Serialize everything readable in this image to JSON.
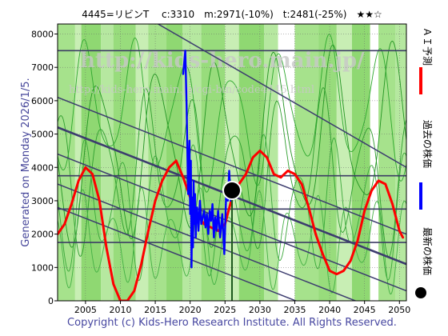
{
  "header": {
    "title": "4445=リビンT　 c:3310　m:2971(-10%)　t:2481(-25%)　★★☆"
  },
  "side": {
    "generated": "Generated on Monday 2026/1/5."
  },
  "footer": {
    "copyright": "Copyright (c) Kids-Hero Research Institute. All Rights Reserved."
  },
  "watermark": {
    "url1": "http://kids-hero.main.jp/",
    "url2": "http://kids-hero.main.jp/cgi-bin/code4445.html"
  },
  "legend": {
    "items": [
      {
        "label": "ＡＩ予測",
        "color": "#ff0000",
        "shape": "line"
      },
      {
        "label": "過去の株価",
        "color": "#0000ff",
        "shape": "line"
      },
      {
        "label": "最新の株価",
        "color": "#000000",
        "shape": "circle"
      }
    ]
  },
  "chart_data": {
    "type": "line",
    "title": "4445=リビンT　 c:3310　m:2971(-10%)　t:2481(-25%)　★★☆",
    "xlim": [
      2001,
      2051
    ],
    "ylim": [
      0,
      8300
    ],
    "x_ticks": [
      2005,
      2010,
      2015,
      2020,
      2025,
      2030,
      2035,
      2040,
      2045,
      2050
    ],
    "y_ticks": [
      0,
      1000,
      2000,
      3000,
      4000,
      5000,
      6000,
      7000,
      8000
    ],
    "grid": true,
    "current_point": {
      "x": 2026.0,
      "y": 3310,
      "color": "#000000"
    },
    "horizontal_levels": [
      2750,
      3750,
      1750,
      7500
    ],
    "diagonal_lines": [
      {
        "x": [
          2001,
          2051
        ],
        "y": [
          6100,
          2000
        ]
      },
      {
        "x": [
          2001,
          2051
        ],
        "y": [
          5200,
          1100
        ]
      },
      {
        "x": [
          2001,
          2051
        ],
        "y": [
          4400,
          300
        ]
      },
      {
        "x": [
          2001,
          2051
        ],
        "y": [
          3500,
          -600
        ]
      },
      {
        "x": [
          2001,
          2051
        ],
        "y": [
          2800,
          -1300
        ]
      },
      {
        "x": [
          2015.4,
          2051
        ],
        "y": [
          8300,
          4000
        ]
      }
    ],
    "series": [
      {
        "name": "ＡＩ予測",
        "color": "#ff0000",
        "x": [
          2001,
          2002,
          2003,
          2004,
          2005,
          2006,
          2007,
          2008,
          2009,
          2010,
          2011,
          2012,
          2013,
          2014,
          2015,
          2016,
          2017,
          2018,
          2019,
          2020,
          2021,
          2022,
          2023,
          2024,
          2025,
          2026,
          2027,
          2028,
          2029,
          2030,
          2031,
          2032,
          2033,
          2034,
          2035,
          2036,
          2037,
          2038,
          2039,
          2040,
          2041,
          2042,
          2043,
          2044,
          2045,
          2046,
          2047,
          2048,
          2049,
          2050,
          2050.5
        ],
        "y": [
          2000,
          2300,
          2900,
          3600,
          4000,
          3800,
          3000,
          1600,
          500,
          0,
          0,
          300,
          1100,
          2100,
          3000,
          3600,
          4000,
          4200,
          3700,
          3100,
          2600,
          2300,
          2200,
          2100,
          2300,
          3100,
          3500,
          3800,
          4300,
          4500,
          4300,
          3800,
          3700,
          3900,
          3800,
          3500,
          2800,
          2000,
          1400,
          900,
          800,
          900,
          1200,
          1800,
          2700,
          3300,
          3600,
          3500,
          2900,
          2100,
          1900
        ]
      },
      {
        "name": "過去の株価",
        "color": "#0000ff",
        "x": [
          2019.0,
          2019.3,
          2019.5,
          2019.7,
          2019.9,
          2020.0,
          2020.1,
          2020.2,
          2020.3,
          2020.4,
          2020.5,
          2020.6,
          2020.7,
          2020.8,
          2020.9,
          2021.0,
          2021.2,
          2021.4,
          2021.6,
          2021.8,
          2022.0,
          2022.2,
          2022.4,
          2022.6,
          2022.8,
          2023.0,
          2023.2,
          2023.4,
          2023.6,
          2023.8,
          2024.0,
          2024.3,
          2024.6,
          2024.9,
          2025.2,
          2025.4,
          2025.6,
          2025.8,
          2026.0
        ],
        "y": [
          6800,
          7500,
          5800,
          3200,
          4800,
          2600,
          4200,
          1000,
          3100,
          1600,
          3600,
          2300,
          3200,
          1900,
          2700,
          2800,
          2100,
          3000,
          2300,
          2500,
          2700,
          2200,
          2600,
          2000,
          2700,
          2400,
          2900,
          1900,
          2500,
          2100,
          2700,
          1900,
          2600,
          1400,
          3400,
          3000,
          3900,
          3000,
          3310
        ]
      }
    ]
  }
}
